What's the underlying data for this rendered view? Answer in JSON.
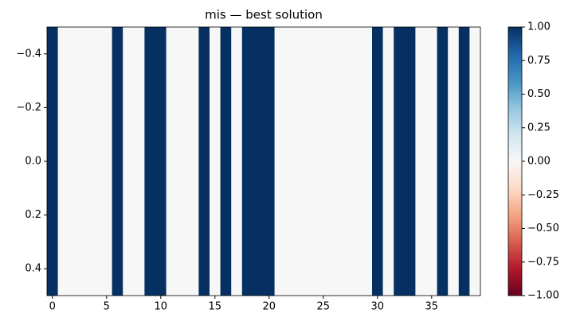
{
  "chart_data": {
    "type": "heatmap",
    "title": "mis — best solution",
    "colormap": "RdBu",
    "values": [
      [
        1,
        0,
        0,
        0,
        0,
        0,
        1,
        0,
        0,
        1,
        1,
        0,
        0,
        0,
        1,
        0,
        1,
        0,
        1,
        1,
        1,
        0,
        0,
        0,
        0,
        0,
        0,
        0,
        0,
        0,
        1,
        0,
        1,
        1,
        0,
        0,
        1,
        0,
        1,
        0
      ]
    ],
    "xlim": [
      -0.5,
      39.5
    ],
    "xticks": [
      0,
      5,
      10,
      15,
      20,
      25,
      30,
      35
    ],
    "ylim": [
      0.5,
      -0.5
    ],
    "yticks": [
      {
        "value": -0.4,
        "label": "−0.4"
      },
      {
        "value": -0.2,
        "label": "−0.2"
      },
      {
        "value": 0.0,
        "label": "0.0"
      },
      {
        "value": 0.2,
        "label": "0.2"
      },
      {
        "value": 0.4,
        "label": "0.4"
      }
    ],
    "colorbar": {
      "lim": [
        -1,
        1
      ],
      "ticks": [
        {
          "value": 1,
          "label": "1.00"
        },
        {
          "value": 0.75,
          "label": "0.75"
        },
        {
          "value": 0.5,
          "label": "0.50"
        },
        {
          "value": 0.25,
          "label": "0.25"
        },
        {
          "value": 0,
          "label": "0.00"
        },
        {
          "value": -0.25,
          "label": "−0.25"
        },
        {
          "value": -0.5,
          "label": "−0.50"
        },
        {
          "value": -0.75,
          "label": "−0.75"
        },
        {
          "value": -1,
          "label": "−1.00"
        }
      ]
    }
  }
}
